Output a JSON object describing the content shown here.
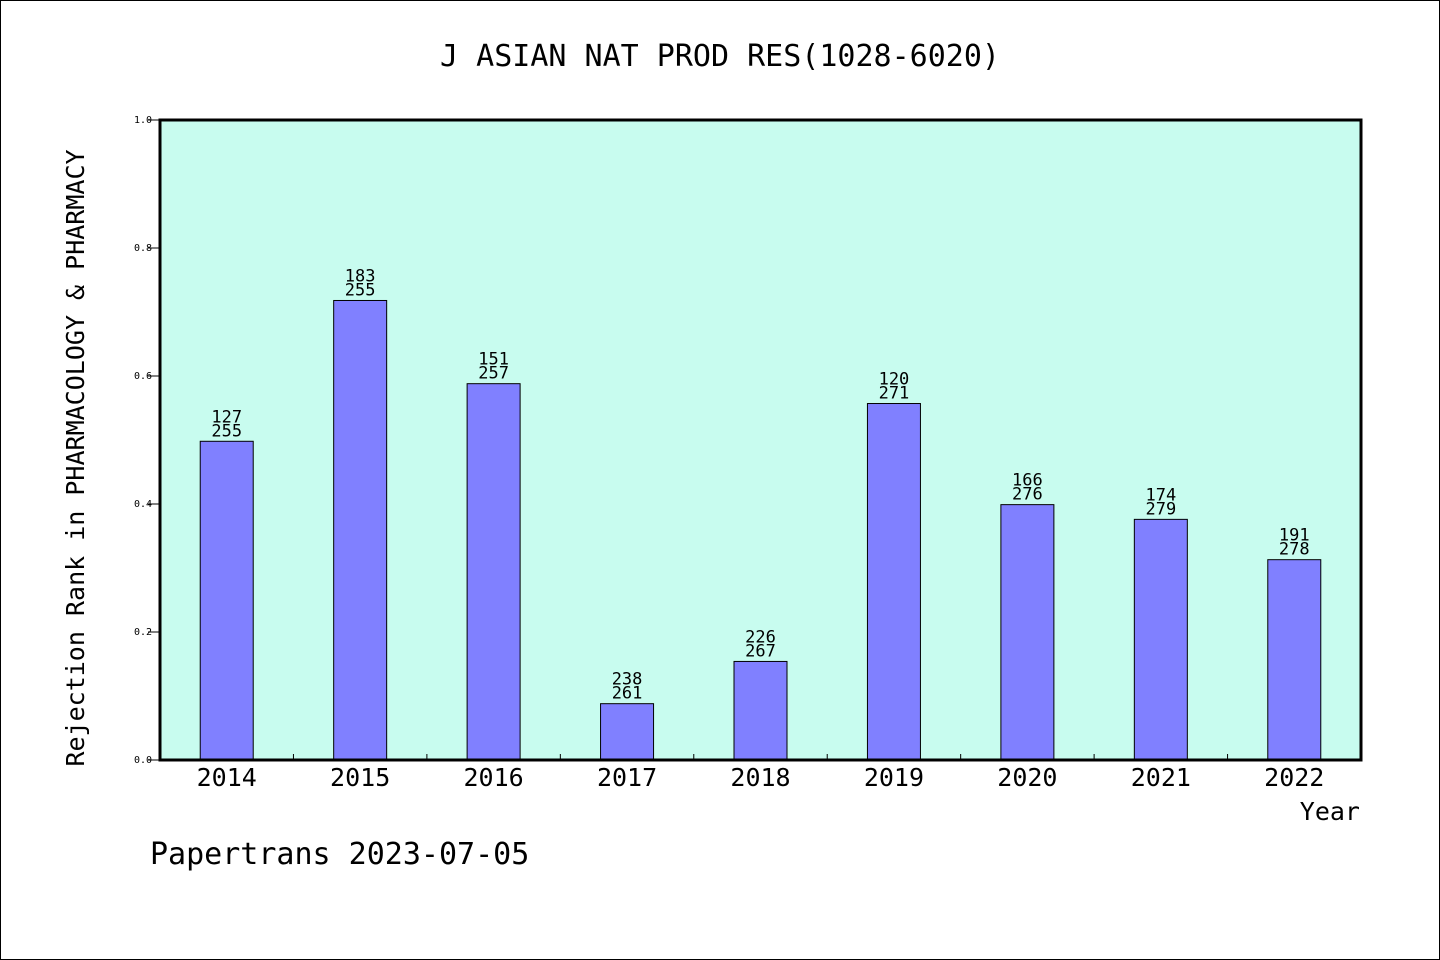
{
  "chart_data": {
    "type": "bar",
    "title": "J ASIAN NAT PROD RES(1028-6020)",
    "xlabel": "Year",
    "ylabel": "Rejection Rank in PHARMACOLOGY & PHARMACY",
    "categories": [
      "2014",
      "2015",
      "2016",
      "2017",
      "2018",
      "2019",
      "2020",
      "2021",
      "2022"
    ],
    "values": [
      0.498,
      0.718,
      0.588,
      0.088,
      0.154,
      0.557,
      0.399,
      0.376,
      0.313
    ],
    "label_top": [
      "127",
      "183",
      "151",
      "238",
      "226",
      "120",
      "166",
      "174",
      "191"
    ],
    "label_bottom": [
      "255",
      "255",
      "257",
      "261",
      "267",
      "271",
      "276",
      "279",
      "278"
    ],
    "ylim": [
      0,
      1.0
    ],
    "yticks": [
      "0.0",
      "0.2",
      "0.4",
      "0.6",
      "0.8",
      "1.0"
    ],
    "ytick_values": [
      0,
      0.2,
      0.4,
      0.6,
      0.8,
      1.0
    ],
    "grid": false,
    "colors": {
      "plot_background": "#c8fcef",
      "bar_fill": "#8080ff",
      "bar_stroke": "#000000"
    }
  },
  "footer": {
    "credit": "Papertrans 2023-07-05"
  }
}
